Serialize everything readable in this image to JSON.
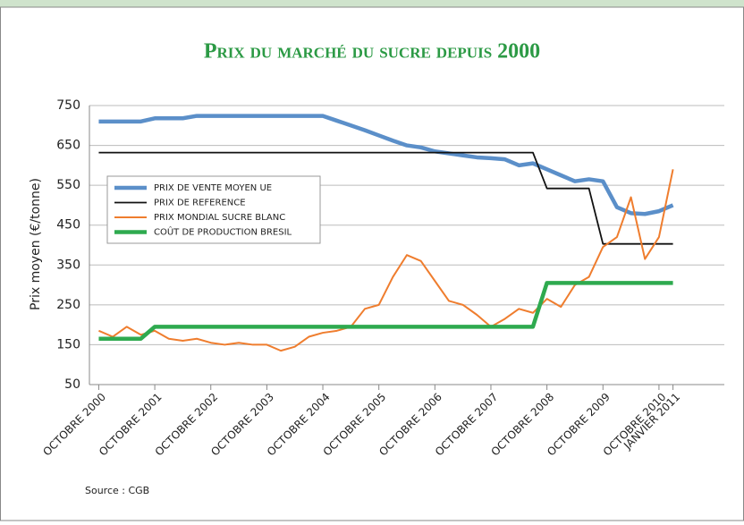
{
  "chart_data": {
    "type": "line",
    "title": "Prix du marché du sucre depuis 2000",
    "y_label": "Prix moyen (€/tonne)",
    "source": "Source : CGB",
    "x": [
      "2000-10",
      "2001-01",
      "2001-04",
      "2001-07",
      "2001-10",
      "2002-01",
      "2002-04",
      "2002-07",
      "2002-10",
      "2003-01",
      "2003-04",
      "2003-07",
      "2003-10",
      "2004-01",
      "2004-04",
      "2004-07",
      "2004-10",
      "2005-01",
      "2005-04",
      "2005-07",
      "2005-10",
      "2006-01",
      "2006-04",
      "2006-07",
      "2006-10",
      "2007-01",
      "2007-04",
      "2007-07",
      "2007-10",
      "2008-01",
      "2008-04",
      "2008-07",
      "2008-10",
      "2009-01",
      "2009-04",
      "2009-07",
      "2009-10",
      "2010-01",
      "2010-04",
      "2010-07",
      "2010-10",
      "2011-01"
    ],
    "xlim": [
      "2000-08",
      "2011-12"
    ],
    "xticks": [
      {
        "value": "2000-10",
        "label": "OCTOBRE 2000"
      },
      {
        "value": "2001-10",
        "label": "OCTOBRE 2001"
      },
      {
        "value": "2002-10",
        "label": "OCTOBRE 2002"
      },
      {
        "value": "2003-10",
        "label": "OCTOBRE 2003"
      },
      {
        "value": "2004-10",
        "label": "OCTOBRE 2004"
      },
      {
        "value": "2005-10",
        "label": "OCTOBRE 2005"
      },
      {
        "value": "2006-10",
        "label": "OCTOBRE 2006"
      },
      {
        "value": "2007-10",
        "label": "OCTOBRE 2007"
      },
      {
        "value": "2008-10",
        "label": "OCTOBRE 2008"
      },
      {
        "value": "2009-10",
        "label": "OCTOBRE 2009"
      },
      {
        "value": "2010-10",
        "label": "OCTOBRE 2010"
      },
      {
        "value": "2011-01",
        "label": "JANVIER 2011"
      }
    ],
    "ylim": [
      50,
      750
    ],
    "yticks": [
      50,
      150,
      250,
      350,
      450,
      550,
      650,
      750
    ],
    "grid": true,
    "series": [
      {
        "name": "PRIX DE VENTE MOYEN UE",
        "color": "#5b8fc9",
        "width": 4.5,
        "values": [
          710,
          710,
          710,
          710,
          718,
          718,
          718,
          724,
          724,
          724,
          724,
          724,
          724,
          724,
          724,
          724,
          724,
          712,
          700,
          688,
          675,
          662,
          650,
          645,
          635,
          630,
          625,
          620,
          618,
          615,
          600,
          605,
          590,
          575,
          560,
          565,
          560,
          495,
          480,
          478,
          485,
          500
        ]
      },
      {
        "name": "PRIX DE REFERENCE",
        "color": "#111111",
        "width": 1.8,
        "values": [
          632,
          632,
          632,
          632,
          632,
          632,
          632,
          632,
          632,
          632,
          632,
          632,
          632,
          632,
          632,
          632,
          632,
          632,
          632,
          632,
          632,
          632,
          632,
          632,
          632,
          632,
          632,
          632,
          632,
          632,
          632,
          632,
          542,
          542,
          542,
          542,
          403,
          403,
          403,
          403,
          403,
          403
        ]
      },
      {
        "name": "PRIX MONDIAL SUCRE BLANC",
        "color": "#ef7d2e",
        "width": 2,
        "values": [
          185,
          170,
          195,
          175,
          185,
          165,
          160,
          165,
          155,
          150,
          155,
          150,
          150,
          135,
          145,
          170,
          180,
          185,
          195,
          240,
          250,
          320,
          375,
          360,
          310,
          260,
          250,
          225,
          195,
          215,
          240,
          230,
          265,
          245,
          300,
          320,
          395,
          420,
          520,
          365,
          420,
          590
        ]
      },
      {
        "name": "COÛT DE PRODUCTION BRESIL",
        "color": "#2eaa4f",
        "width": 4.5,
        "values": [
          165,
          165,
          165,
          165,
          195,
          195,
          195,
          195,
          195,
          195,
          195,
          195,
          195,
          195,
          195,
          195,
          195,
          195,
          195,
          195,
          195,
          195,
          195,
          195,
          195,
          195,
          195,
          195,
          195,
          195,
          195,
          195,
          305,
          305,
          305,
          305,
          305,
          305,
          305,
          305,
          305,
          305
        ]
      }
    ]
  }
}
